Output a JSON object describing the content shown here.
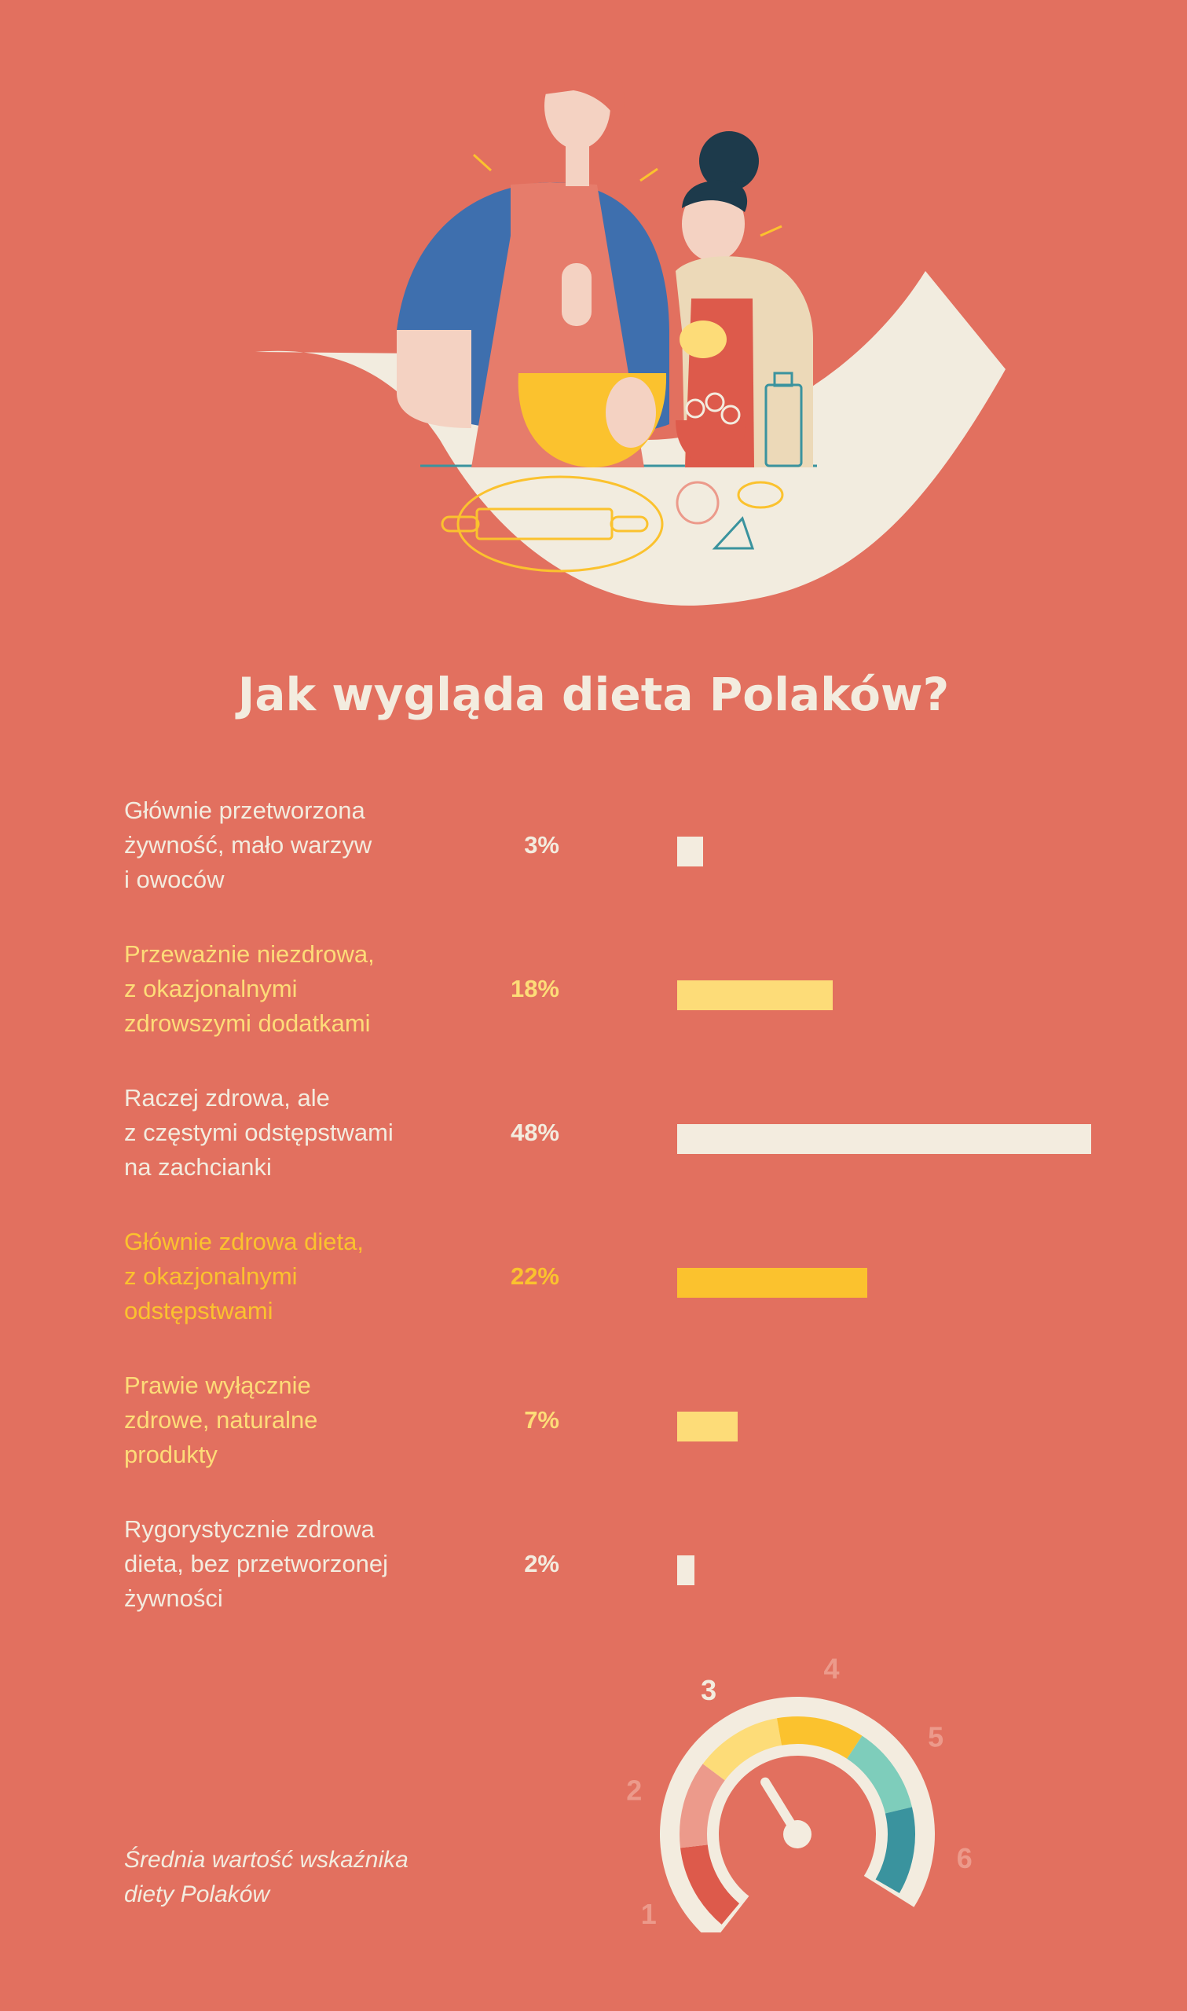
{
  "title": "Jak wygląda dieta Polaków?",
  "colors": {
    "background": "#e2705f",
    "cream": "#f3ecdf",
    "yellow_light": "#fddc78",
    "yellow": "#fbc22e"
  },
  "chart_data": {
    "type": "bar",
    "orientation": "horizontal",
    "categories": [
      "Głównie przetworzona\nżywność, mało warzyw\ni owoców",
      "Przeważnie niezdrowa,\nz okazjonalnymi\nzdrowszymi dodatkami",
      "Raczej zdrowa, ale\nz częstymi odstępstwami\nna zachcianki",
      "Głównie zdrowa dieta,\nz okazjonalnymi\nodstępstwami",
      "Prawie wyłącznie\nzdrowe, naturalne\nprodukty",
      "Rygorystycznie zdrowa\ndieta, bez przetworzonej\nżywności"
    ],
    "values": [
      3,
      18,
      48,
      22,
      7,
      2
    ],
    "value_labels": [
      "3%",
      "18%",
      "48%",
      "22%",
      "7%",
      "2%"
    ],
    "bar_colors": [
      "#f3ecdf",
      "#fddc78",
      "#f3ecdf",
      "#fbc22e",
      "#fddc78",
      "#f3ecdf"
    ],
    "label_colors": [
      "#f3ecdf",
      "#fddc78",
      "#f3ecdf",
      "#fbc22e",
      "#fddc78",
      "#f3ecdf"
    ],
    "xlim": [
      0,
      48
    ]
  },
  "gauge": {
    "caption": "Średnia wartość wskaźnika\ndiety Polaków",
    "scale": [
      "1",
      "2",
      "3",
      "4",
      "5",
      "6"
    ],
    "value": 3,
    "segment_colors": [
      "#dd5a4b",
      "#ec9a8b",
      "#fddc78",
      "#fbc22e",
      "#7ecdbb",
      "#3a939e"
    ]
  }
}
